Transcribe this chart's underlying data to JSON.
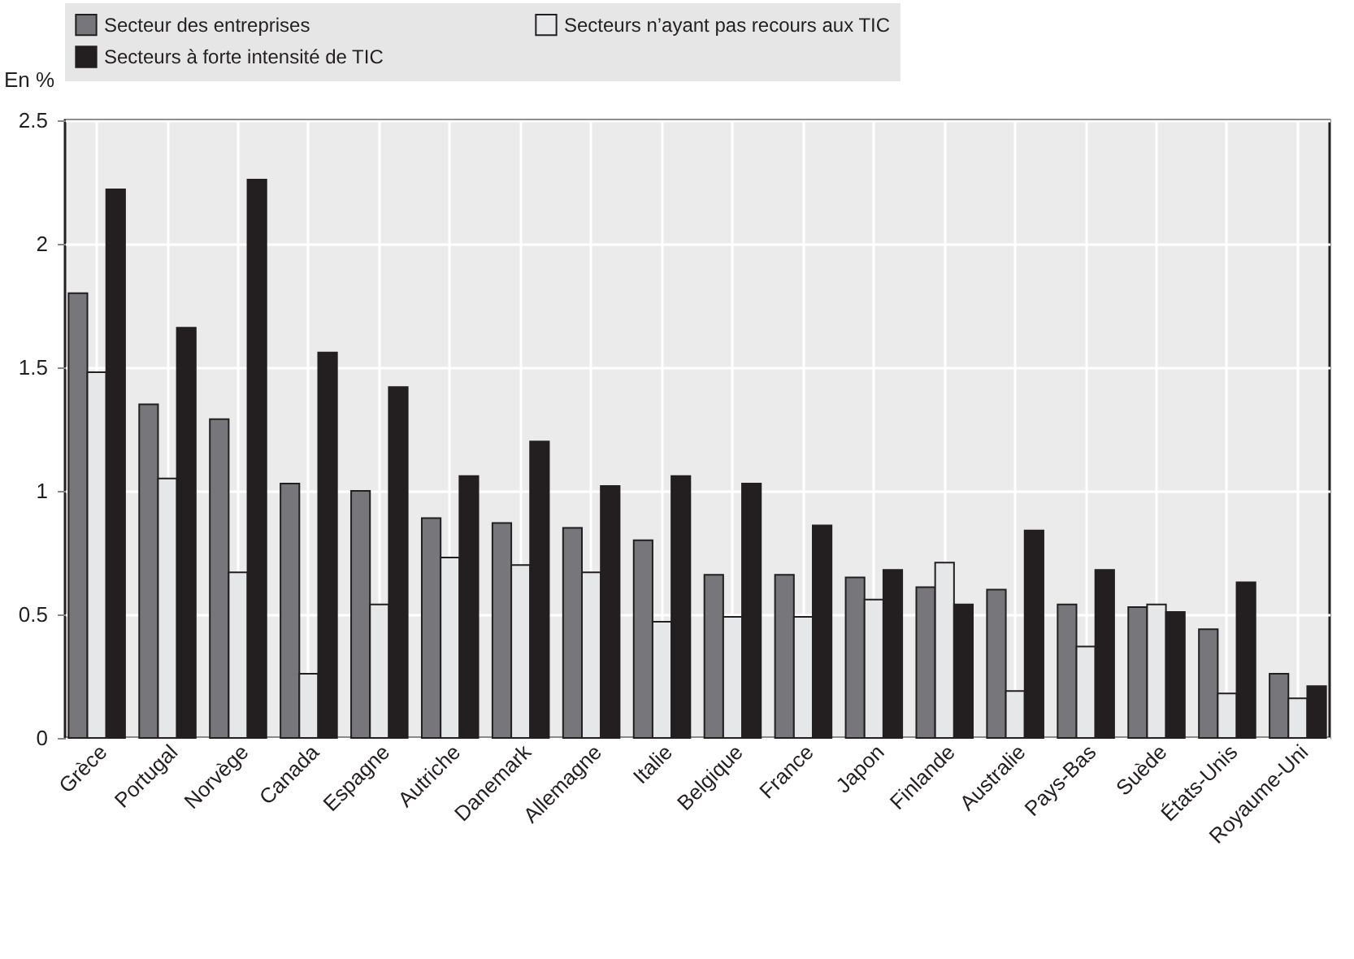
{
  "chart_data": {
    "type": "bar",
    "ylabel": "En %",
    "categories": [
      "Grèce",
      "Portugal",
      "Norvège",
      "Canada",
      "Espagne",
      "Autriche",
      "Danemark",
      "Allemagne",
      "Italie",
      "Belgique",
      "France",
      "Japon",
      "Finlande",
      "Australie",
      "Pays-Bas",
      "Suède",
      "États-Unis",
      "Royaume-Uni"
    ],
    "series": [
      {
        "name": "Secteur des entreprises",
        "color": "#77777b",
        "values": [
          1.8,
          1.35,
          1.29,
          1.03,
          1.0,
          0.89,
          0.87,
          0.85,
          0.8,
          0.66,
          0.66,
          0.65,
          0.61,
          0.6,
          0.54,
          0.53,
          0.44,
          0.26
        ]
      },
      {
        "name": "Secteurs n’ayant pas recours aux TIC",
        "color": "#e6e7e8",
        "values": [
          1.48,
          1.05,
          0.67,
          0.26,
          0.54,
          0.73,
          0.7,
          0.67,
          0.47,
          0.49,
          0.49,
          0.56,
          0.71,
          0.19,
          0.37,
          0.54,
          0.18,
          0.16
        ]
      },
      {
        "name": "Secteurs à forte intensité de TIC",
        "color": "#231f20",
        "values": [
          2.22,
          1.66,
          2.26,
          1.56,
          1.42,
          1.06,
          1.2,
          1.02,
          1.06,
          1.03,
          0.86,
          0.68,
          0.54,
          0.84,
          0.68,
          0.51,
          0.63,
          0.21
        ]
      }
    ],
    "ylim": [
      0,
      2.5
    ],
    "yticks": [
      0,
      0.5,
      1,
      1.5,
      2,
      2.5
    ],
    "grid": true,
    "legend": "top"
  }
}
